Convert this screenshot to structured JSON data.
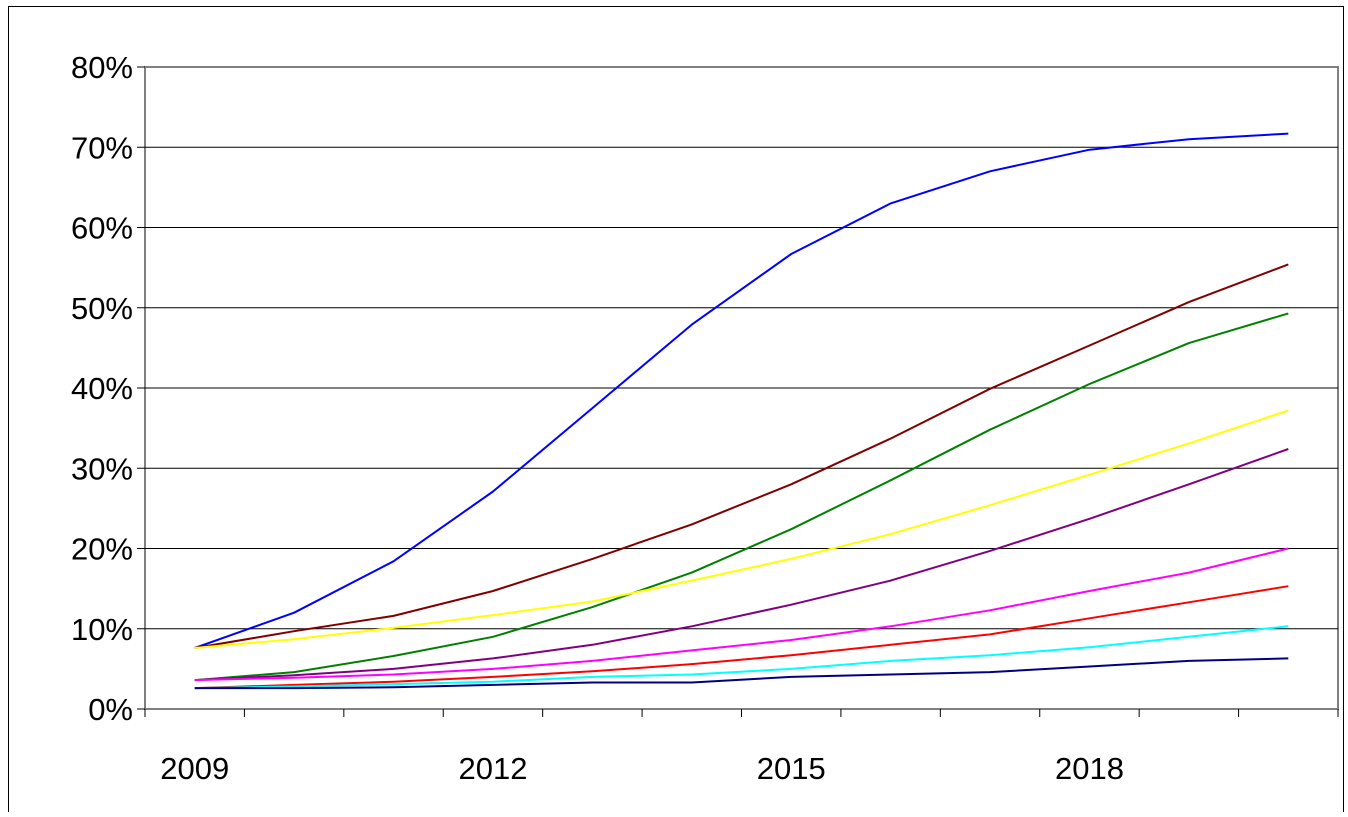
{
  "chart_data": {
    "type": "line",
    "title": "",
    "xlabel": "",
    "ylabel": "",
    "x": [
      2009,
      2010,
      2011,
      2012,
      2013,
      2014,
      2015,
      2016,
      2017,
      2018,
      2019,
      2020
    ],
    "x_tick_labels": [
      "2009",
      "2012",
      "2015",
      "2018"
    ],
    "y_tick_labels": [
      "0%",
      "10%",
      "20%",
      "30%",
      "40%",
      "50%",
      "60%",
      "70%",
      "80%"
    ],
    "ylim": [
      0,
      80
    ],
    "y_unit": "%",
    "grid": "horizontal",
    "legend": "none",
    "series": [
      {
        "color": "#0000FF",
        "values": [
          7.6,
          12.0,
          18.4,
          27.1,
          37.5,
          47.9,
          56.7,
          63.0,
          67.0,
          69.7,
          71.0,
          71.7
        ]
      },
      {
        "color": "#800000",
        "values": [
          7.6,
          9.7,
          11.6,
          14.7,
          18.7,
          23.0,
          28.0,
          33.7,
          39.9,
          45.3,
          50.7,
          55.4
        ]
      },
      {
        "color": "#008000",
        "values": [
          3.6,
          4.6,
          6.6,
          9.0,
          12.7,
          17.0,
          22.4,
          28.5,
          34.8,
          40.5,
          45.6,
          49.3
        ]
      },
      {
        "color": "#FFFF00",
        "values": [
          7.6,
          8.7,
          10.1,
          11.7,
          13.4,
          16.0,
          18.7,
          21.8,
          25.4,
          29.2,
          33.1,
          37.2
        ]
      },
      {
        "color": "#800080",
        "values": [
          3.6,
          4.2,
          5.0,
          6.3,
          8.0,
          10.3,
          13.0,
          16.0,
          19.7,
          23.7,
          28.0,
          32.4
        ]
      },
      {
        "color": "#FF00FF",
        "values": [
          3.6,
          3.9,
          4.3,
          5.0,
          6.0,
          7.3,
          8.6,
          10.3,
          12.3,
          14.7,
          17.0,
          20.0
        ]
      },
      {
        "color": "#FF0000",
        "values": [
          2.6,
          3.0,
          3.4,
          4.0,
          4.7,
          5.6,
          6.7,
          8.0,
          9.3,
          11.3,
          13.3,
          15.3
        ]
      },
      {
        "color": "#00FFFF",
        "values": [
          2.6,
          2.8,
          3.1,
          3.4,
          4.0,
          4.3,
          5.0,
          6.0,
          6.7,
          7.7,
          9.0,
          10.3
        ]
      },
      {
        "color": "#000080",
        "values": [
          2.6,
          2.6,
          2.7,
          3.0,
          3.3,
          3.3,
          4.0,
          4.3,
          4.6,
          5.3,
          6.0,
          6.3
        ]
      }
    ]
  }
}
